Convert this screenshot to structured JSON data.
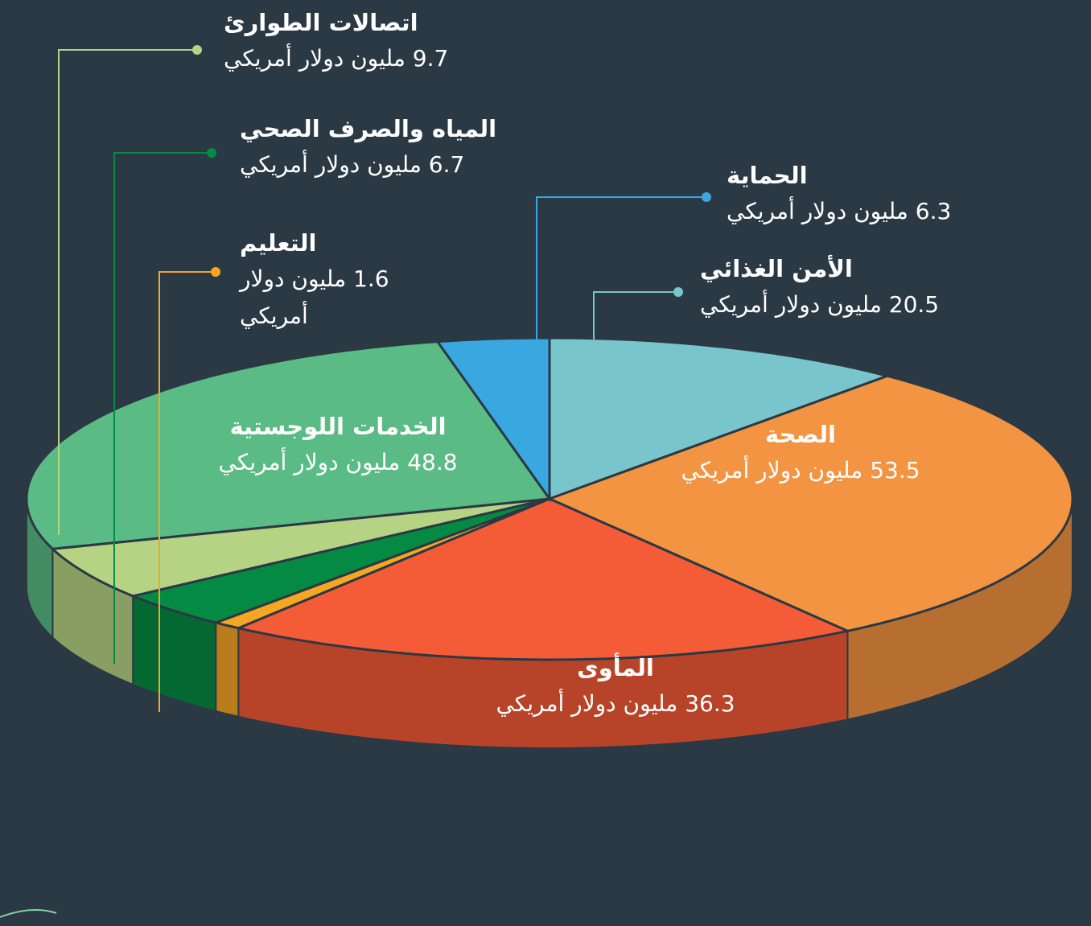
{
  "chart_data": {
    "type": "pie",
    "categories": [
      "الأمن الغذائي",
      "الصحة",
      "المأوى",
      "التعليم",
      "المياه والصرف الصحي",
      "اتصالات الطوارئ",
      "الخدمات اللوجستية",
      "الحماية"
    ],
    "values": [
      20.5,
      53.5,
      36.3,
      1.6,
      6.7,
      9.7,
      48.8,
      6.3
    ],
    "value_labels": [
      "20.5 مليون دولار أمريكي",
      "53.5 مليون دولار أمريكي",
      "36.3 مليون دولار أمريكي",
      "1.6 مليون دولار أمريكي",
      "6.7 مليون دولار أمريكي",
      "9.7 مليون دولار أمريكي",
      "48.8 مليون دولار أمريكي",
      "6.3 مليون دولار أمريكي"
    ],
    "colors": [
      "#79c5cc",
      "#f29441",
      "#f45b37",
      "#f5a623",
      "#058a43",
      "#b5d383",
      "#5bbb85",
      "#3aa8e0"
    ]
  }
}
